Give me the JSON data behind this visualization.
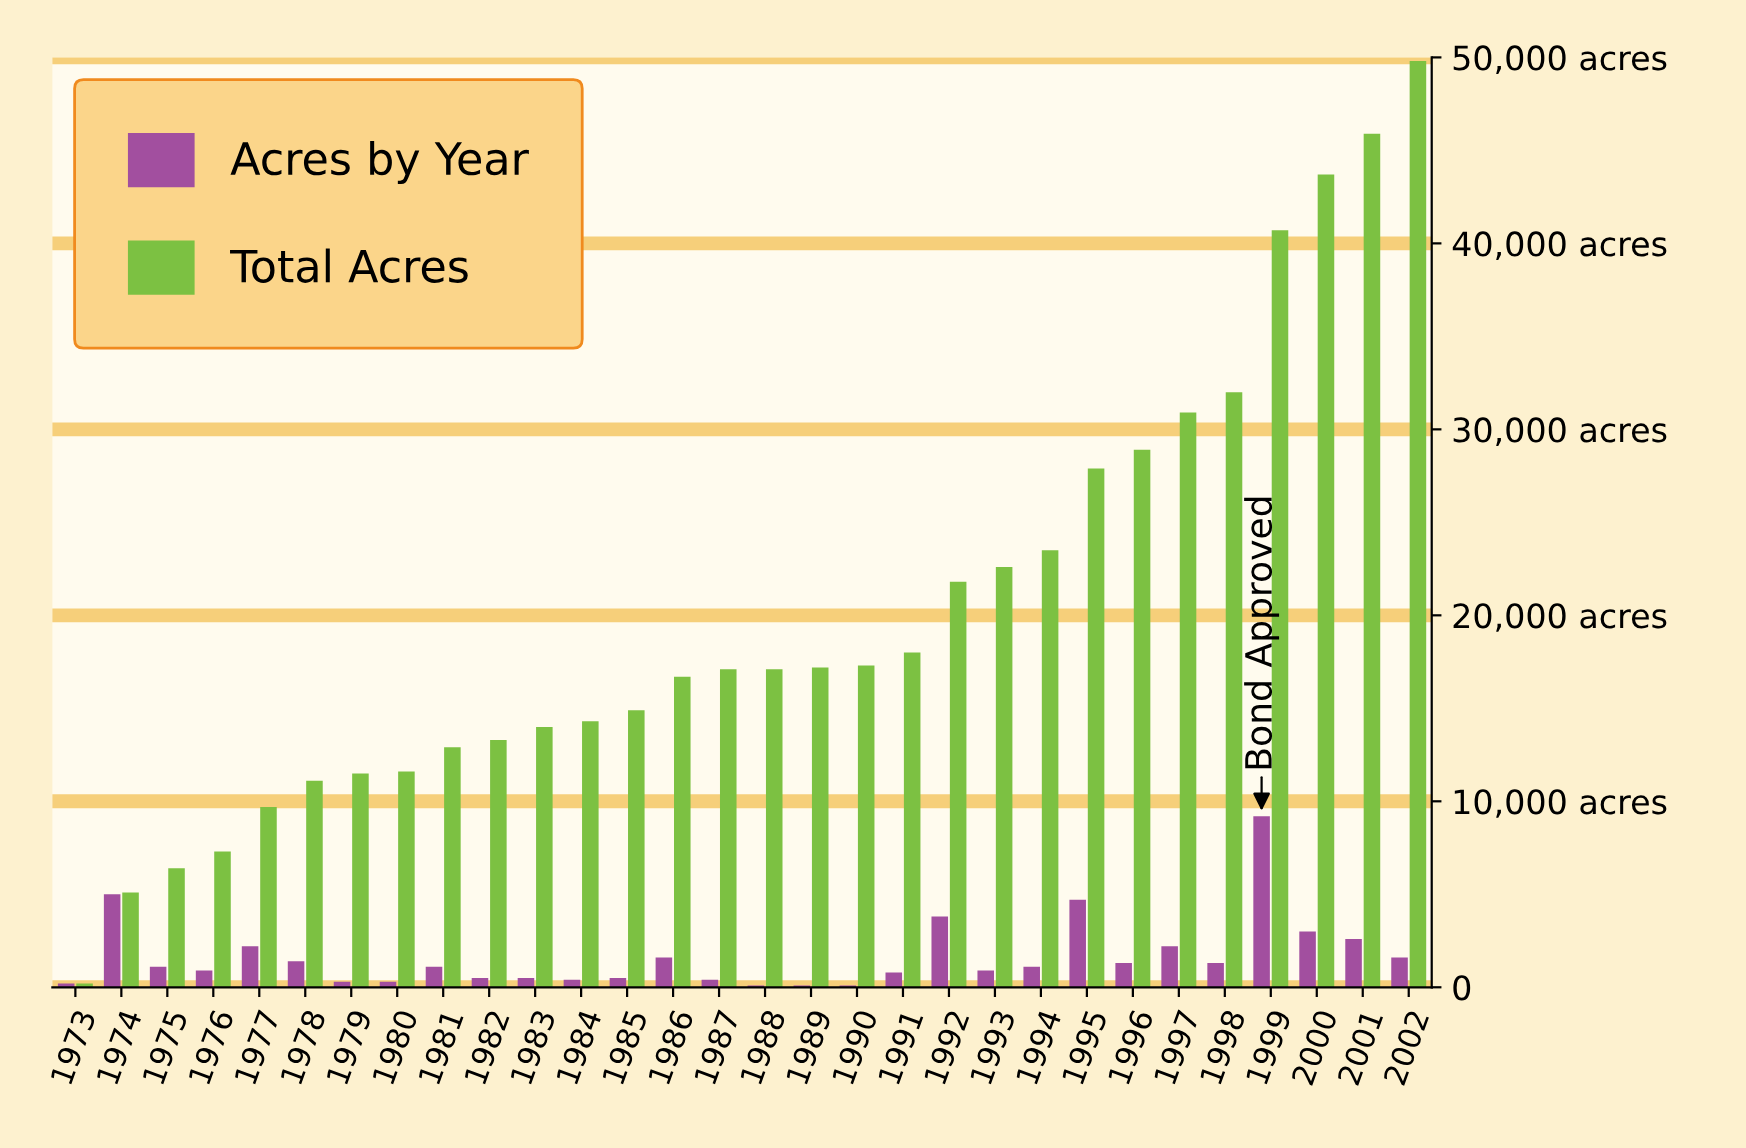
{
  "chart_data": {
    "type": "bar",
    "categories": [
      "1973",
      "1974",
      "1975",
      "1976",
      "1977",
      "1978",
      "1979",
      "1980",
      "1981",
      "1982",
      "1983",
      "1984",
      "1985",
      "1986",
      "1987",
      "1988",
      "1989",
      "1990",
      "1991",
      "1992",
      "1993",
      "1994",
      "1995",
      "1996",
      "1997",
      "1998",
      "1999",
      "2000",
      "2001",
      "2002"
    ],
    "series": [
      {
        "name": "Acres by Year",
        "color": "#a24f9f",
        "values": [
          200,
          5000,
          1100,
          900,
          2200,
          1400,
          300,
          300,
          1100,
          500,
          500,
          400,
          500,
          1600,
          400,
          100,
          100,
          100,
          800,
          3800,
          900,
          1100,
          4700,
          1300,
          2200,
          1300,
          9200,
          3000,
          2600,
          1600
        ]
      },
      {
        "name": "Total Acres",
        "color": "#7cc142",
        "values": [
          200,
          5100,
          6400,
          7300,
          9700,
          11100,
          11500,
          11600,
          12900,
          13300,
          14000,
          14300,
          14900,
          16700,
          17100,
          17100,
          17200,
          17300,
          18000,
          21800,
          22600,
          23500,
          27900,
          28900,
          30900,
          32000,
          40700,
          43700,
          45900,
          49800
        ]
      }
    ],
    "ylim": [
      0,
      50000
    ],
    "yticks": [
      {
        "value": 0,
        "label": "0"
      },
      {
        "value": 10000,
        "label": "10,000 acres"
      },
      {
        "value": 20000,
        "label": "20,000 acres"
      },
      {
        "value": 30000,
        "label": "30,000 acres"
      },
      {
        "value": 40000,
        "label": "40,000 acres"
      },
      {
        "value": 50000,
        "label": "50,000 acres"
      }
    ],
    "grid": "y",
    "legend": "top left",
    "annotations": [
      {
        "text": "Bond Approved",
        "x": "1999",
        "y": 9200
      }
    ]
  }
}
